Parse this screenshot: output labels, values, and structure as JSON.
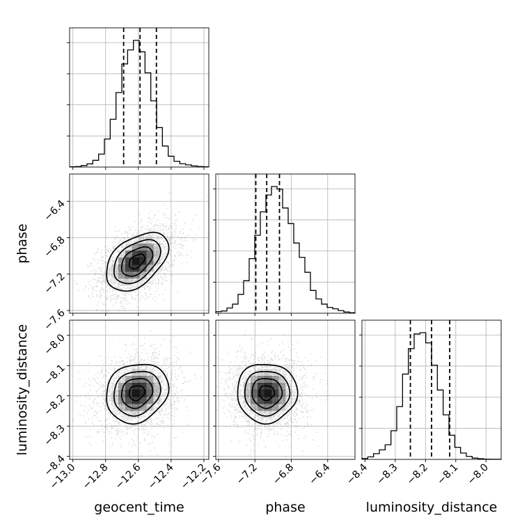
{
  "chart_data": {
    "type": "corner",
    "parameters": [
      "geocent_time",
      "phase",
      "luminosity_distance"
    ],
    "grid": true,
    "histogram": {
      "geocent_time": {
        "range": [
          -13.02,
          -12.17
        ],
        "bins": 24,
        "counts": [
          0.002,
          0.004,
          0.012,
          0.025,
          0.053,
          0.102,
          0.22,
          0.375,
          0.585,
          0.81,
          0.92,
          0.995,
          0.905,
          0.74,
          0.52,
          0.31,
          0.165,
          0.085,
          0.045,
          0.026,
          0.017,
          0.009,
          0.004,
          0.002
        ],
        "quantile_lines": [
          -12.69,
          -12.59,
          -12.49
        ]
      },
      "phase": {
        "range": [
          -7.63,
          -6.1
        ],
        "bins": 25,
        "counts": [
          0.012,
          0.017,
          0.04,
          0.07,
          0.145,
          0.25,
          0.42,
          0.6,
          0.78,
          0.91,
          0.975,
          0.955,
          0.81,
          0.69,
          0.54,
          0.43,
          0.315,
          0.175,
          0.11,
          0.07,
          0.045,
          0.034,
          0.02,
          0.009,
          0.004
        ],
        "quantile_lines": [
          -7.19,
          -7.07,
          -6.93
        ]
      },
      "luminosity_distance": {
        "range": [
          -8.41,
          -7.95
        ],
        "bins": 24,
        "counts": [
          0.007,
          0.02,
          0.045,
          0.075,
          0.115,
          0.225,
          0.415,
          0.67,
          0.87,
          0.985,
          0.995,
          0.915,
          0.74,
          0.545,
          0.35,
          0.19,
          0.095,
          0.05,
          0.024,
          0.01,
          0.005,
          0.002,
          0.001,
          0.001
        ],
        "quantile_lines": [
          -8.25,
          -8.18,
          -8.12
        ]
      }
    },
    "contour_2d": [
      {
        "x": "geocent_time",
        "y": "phase",
        "center": [
          -12.61,
          -7.06
        ],
        "sigma": [
          0.095,
          0.16
        ],
        "rho": 0.45
      },
      {
        "x": "geocent_time",
        "y": "luminosity_distance",
        "center": [
          -12.61,
          -8.19
        ],
        "sigma": [
          0.095,
          0.049
        ],
        "rho": 0.15
      },
      {
        "x": "phase",
        "y": "luminosity_distance",
        "center": [
          -7.07,
          -8.19
        ],
        "sigma": [
          0.165,
          0.049
        ],
        "rho": 0.0
      }
    ],
    "axes": {
      "geocent_time": {
        "lim": [
          -13.02,
          -12.17
        ],
        "ticks": [
          -13.0,
          -12.8,
          -12.6,
          -12.4,
          -12.2
        ],
        "tick_labels": [
          "−13.0",
          "−12.8",
          "−12.6",
          "−12.4",
          "−12.2"
        ]
      },
      "phase": {
        "lim": [
          -7.63,
          -6.1
        ],
        "ticks": [
          -7.6,
          -7.2,
          -6.8,
          -6.4
        ],
        "tick_labels": [
          "−7.6",
          "−7.2",
          "−6.8",
          "−6.4"
        ]
      },
      "luminosity_distance": {
        "lim": [
          -8.41,
          -7.95
        ],
        "ticks": [
          -8.4,
          -8.3,
          -8.2,
          -8.1,
          -8.0
        ],
        "tick_labels": [
          "−8.4",
          "−8.3",
          "−8.2",
          "−8.1",
          "−8.0"
        ]
      }
    },
    "xlabels": [
      "geocent_time",
      "phase",
      "luminosity_distance"
    ],
    "ylabels": [
      "phase",
      "luminosity_distance"
    ]
  }
}
